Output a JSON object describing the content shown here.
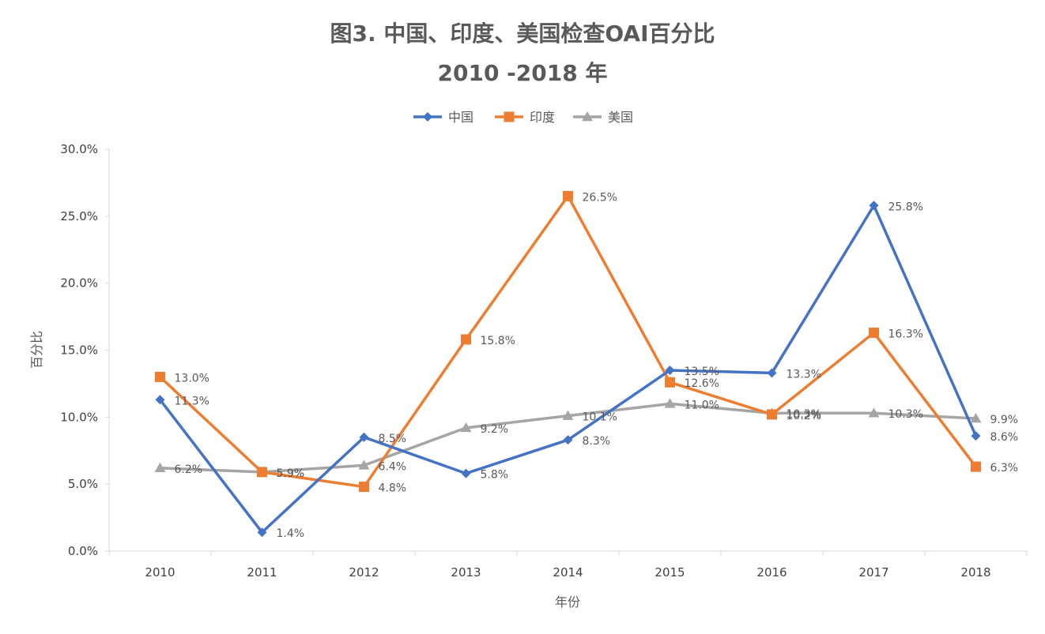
{
  "chart_data": {
    "type": "line",
    "title_line1": "图3. 中国、印度、美国检查OAI百分比",
    "title_line2": "2010 -2018 年",
    "xlabel": "年份",
    "ylabel": "百分比",
    "ylim": [
      0,
      30
    ],
    "y_ticks": [
      "0.0%",
      "5.0%",
      "10.0%",
      "15.0%",
      "20.0%",
      "25.0%",
      "30.0%"
    ],
    "categories": [
      "2010",
      "2011",
      "2012",
      "2013",
      "2014",
      "2015",
      "2016",
      "2017",
      "2018"
    ],
    "legend_position": "top-center",
    "grid": false,
    "series": [
      {
        "name": "中国",
        "color": "#4472C4",
        "marker": "diamond",
        "values": [
          11.3,
          1.4,
          8.5,
          5.8,
          8.3,
          13.5,
          13.3,
          25.8,
          8.6
        ],
        "labels": [
          "11.3%",
          "1.4%",
          "8.5%",
          "5.8%",
          "8.3%",
          "13.5%",
          "13.3%",
          "25.8%",
          "8.6%"
        ]
      },
      {
        "name": "印度",
        "color": "#ED7D31",
        "marker": "square",
        "values": [
          13.0,
          5.9,
          4.8,
          15.8,
          26.5,
          12.6,
          10.2,
          16.3,
          6.3
        ],
        "labels": [
          "13.0%",
          "5.9%",
          "4.8%",
          "15.8%",
          "26.5%",
          "12.6%",
          "10.2%",
          "16.3%",
          "6.3%"
        ]
      },
      {
        "name": "美国",
        "color": "#A5A5A5",
        "marker": "triangle",
        "values": [
          6.2,
          5.9,
          6.4,
          9.2,
          10.1,
          11.0,
          10.3,
          10.3,
          9.9
        ],
        "labels": [
          "6.2%",
          "5.9%",
          "6.4%",
          "9.2%",
          "10.1%",
          "11.0%",
          "10.3%",
          "10.3%",
          "9.9%"
        ]
      }
    ]
  }
}
